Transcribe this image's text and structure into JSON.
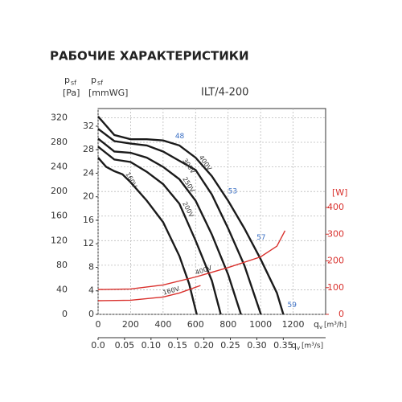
{
  "chart_data": {
    "type": "line",
    "title": "РАБОЧИЕ ХАРАКТЕРИСТИКИ",
    "subtitle": "ILT/4-200",
    "y_label": {
      "symbol": "p",
      "subscript": "sf",
      "unit": "[Pa]"
    },
    "y3_label": {
      "symbol": "p",
      "subscript": "sf",
      "unit": "[mmWG]"
    },
    "y2_label": "[W]",
    "x_label": {
      "symbol": "q",
      "subscript": "v",
      "unit": "[m³/h]"
    },
    "x2_label": {
      "symbol": "q",
      "subscript": "v",
      "unit": "[m³/s]"
    },
    "xlim": [
      0,
      1400
    ],
    "xticks": [
      0,
      200,
      400,
      600,
      800,
      1000,
      1200
    ],
    "x2lim": [
      0,
      0.43
    ],
    "x2ticks": [
      {
        "value": 0,
        "label": "0.0"
      },
      0.05,
      {
        "value": 0.1,
        "label": "0.10"
      },
      0.15,
      {
        "value": 0.2,
        "label": "0.20"
      },
      0.25,
      {
        "value": 0.3,
        "label": "0.30"
      },
      0.35
    ],
    "ylim": [
      0,
      335
    ],
    "yticks": [
      0,
      40,
      80,
      120,
      160,
      200,
      240,
      280,
      320
    ],
    "y3lim": [
      0,
      35
    ],
    "y3ticks": [
      0,
      4,
      8,
      12,
      16,
      20,
      24,
      28,
      32
    ],
    "y2lim": [
      0,
      770
    ],
    "y2ticks": [
      0,
      100,
      200,
      300,
      400
    ],
    "grid": true,
    "series": [
      {
        "name": "160V",
        "color": "#1a1a1a",
        "x": [
          0,
          50,
          100,
          150,
          200,
          300,
          400,
          500,
          560,
          607
        ],
        "values": [
          255,
          240,
          233,
          228,
          215,
          185,
          150,
          95,
          50,
          0
        ]
      },
      {
        "name": "200V",
        "color": "#1a1a1a",
        "x": [
          0,
          100,
          200,
          300,
          400,
          500,
          600,
          700,
          755
        ],
        "values": [
          273,
          252,
          248,
          232,
          212,
          180,
          120,
          55,
          0
        ]
      },
      {
        "name": "250V",
        "color": "#1a1a1a",
        "x": [
          0,
          100,
          200,
          300,
          400,
          500,
          600,
          700,
          800,
          879
        ],
        "values": [
          286,
          265,
          263,
          255,
          240,
          220,
          185,
          130,
          65,
          0
        ]
      },
      {
        "name": "300V",
        "color": "#1a1a1a",
        "x": [
          0,
          100,
          200,
          300,
          400,
          500,
          600,
          700,
          800,
          900,
          1002
        ],
        "values": [
          302,
          282,
          278,
          275,
          265,
          250,
          235,
          195,
          140,
          80,
          0
        ]
      },
      {
        "name": "400V",
        "color": "#1a1a1a",
        "x": [
          0,
          100,
          200,
          300,
          400,
          500,
          600,
          700,
          800,
          900,
          1000,
          1100,
          1140
        ],
        "values": [
          322,
          292,
          285,
          285,
          283,
          275,
          255,
          225,
          185,
          140,
          90,
          35,
          0
        ]
      },
      {
        "name": "400V",
        "color": "#d9302c",
        "axis": "y2",
        "x": [
          0,
          200,
          400,
          600,
          800,
          1000,
          1100,
          1150
        ],
        "values": [
          93,
          95,
          110,
          140,
          175,
          215,
          255,
          313
        ]
      },
      {
        "name": "160V",
        "color": "#d9302c",
        "axis": "y2",
        "x": [
          0,
          200,
          400,
          500,
          630
        ],
        "values": [
          51,
          53,
          65,
          80,
          108
        ]
      }
    ],
    "efficiency_labels": [
      {
        "value": 48,
        "x": 474,
        "y": 290
      },
      {
        "value": 53,
        "x": 800,
        "y": 200
      },
      {
        "value": 57,
        "x": 975,
        "y": 125
      },
      {
        "value": 59,
        "x": 1165,
        "y": 15
      }
    ]
  }
}
